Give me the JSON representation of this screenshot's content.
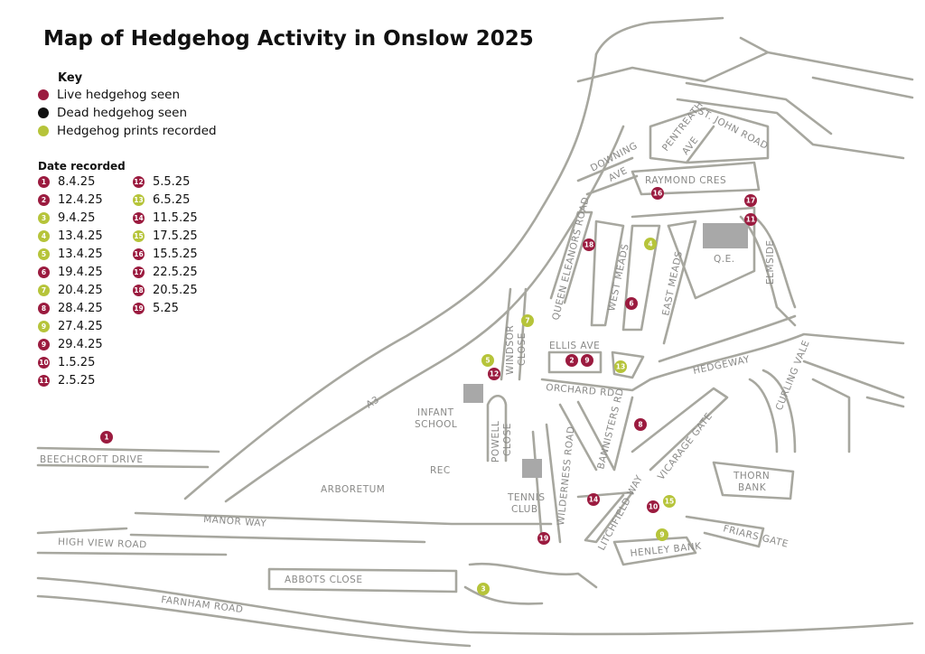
{
  "title": "Map of Hedgehog Activity in Onslow 2025",
  "colors": {
    "live": "#9b1b3f",
    "dead": "#111111",
    "prints": "#b6c43a",
    "road": "#a7a79f",
    "label": "#8a8a88",
    "building": "#a8a8a8"
  },
  "key": {
    "heading": "Key",
    "items": [
      {
        "label": "Live hedgehog seen",
        "type": "live"
      },
      {
        "label": "Dead hedgehog seen",
        "type": "dead"
      },
      {
        "label": "Hedgehog prints recorded",
        "type": "prints"
      }
    ]
  },
  "dates": {
    "heading": "Date recorded",
    "items": [
      {
        "n": "1",
        "date": "8.4.25",
        "type": "live"
      },
      {
        "n": "2",
        "date": "12.4.25",
        "type": "live"
      },
      {
        "n": "3",
        "date": "9.4.25",
        "type": "prints"
      },
      {
        "n": "4",
        "date": "13.4.25",
        "type": "prints"
      },
      {
        "n": "5",
        "date": "13.4.25",
        "type": "prints"
      },
      {
        "n": "6",
        "date": "19.4.25",
        "type": "live"
      },
      {
        "n": "7",
        "date": "20.4.25",
        "type": "prints"
      },
      {
        "n": "8",
        "date": "28.4.25",
        "type": "live"
      },
      {
        "n": "9",
        "date": "27.4.25",
        "type": "prints"
      },
      {
        "n": "9",
        "date": "29.4.25",
        "type": "live"
      },
      {
        "n": "10",
        "date": "1.5.25",
        "type": "live"
      },
      {
        "n": "11",
        "date": "2.5.25",
        "type": "live"
      },
      {
        "n": "12",
        "date": "5.5.25",
        "type": "live"
      },
      {
        "n": "13",
        "date": "6.5.25",
        "type": "prints"
      },
      {
        "n": "14",
        "date": "11.5.25",
        "type": "live"
      },
      {
        "n": "15",
        "date": "17.5.25",
        "type": "prints"
      },
      {
        "n": "16",
        "date": "15.5.25",
        "type": "live"
      },
      {
        "n": "17",
        "date": "22.5.25",
        "type": "live"
      },
      {
        "n": "18",
        "date": "20.5.25",
        "type": "live"
      },
      {
        "n": "19",
        "date": "5.25",
        "type": "live"
      }
    ]
  },
  "road_labels": {
    "beechcroft": "BEECHCROFT DRIVE",
    "a3": "A3",
    "arboretum": "ARBORETUM",
    "manor_way": "MANOR WAY",
    "high_view": "HIGH VIEW ROAD",
    "abbots": "ABBOTS CLOSE",
    "farnham": "FARNHAM ROAD",
    "rec": "REC",
    "infant": "INFANT",
    "school": "SCHOOL",
    "powell": "POWELL",
    "close_powell": "CLOSE",
    "tennis": "TENNIS",
    "club": "CLUB",
    "wilderness": "WILDERNESS ROAD",
    "windsor": "WINDSOR",
    "close_windsor": "CLOSE",
    "queen_eleanors": "QUEEN ELEANORS ROAD",
    "west_meads": "WEST MEADS",
    "east_meads": "EAST MEADS",
    "ellis": "ELLIS AVE",
    "orchard": "ORCHARD RD",
    "bannisters": "BANNISTERS RD",
    "hedgeway": "HEDGEWAY",
    "vicarage": "VICARAGE GATE",
    "litchfield": "LITCHFIELD WAY",
    "henley": "HENLEY BANK",
    "friars": "FRIARS GATE",
    "thorn": "THORN",
    "bank": "BANK",
    "curling": "CURLING VALE",
    "elmside": "ELMSIDE",
    "qe": "Q.E.",
    "raymond": "RAYMOND CRES",
    "downing": "DOWNING",
    "downing_ave": "AVE",
    "pentreath": "PENTREATH",
    "pentreath_ave": "AVE",
    "st_john": "ST. JOHN ROAD"
  },
  "markers": [
    {
      "n": "1",
      "type": "live"
    },
    {
      "n": "2",
      "type": "live"
    },
    {
      "n": "9",
      "type": "live"
    },
    {
      "n": "3",
      "type": "prints"
    },
    {
      "n": "4",
      "type": "prints"
    },
    {
      "n": "5",
      "type": "prints"
    },
    {
      "n": "6",
      "type": "live"
    },
    {
      "n": "7",
      "type": "prints"
    },
    {
      "n": "8",
      "type": "live"
    },
    {
      "n": "9",
      "type": "prints"
    },
    {
      "n": "10",
      "type": "live"
    },
    {
      "n": "11",
      "type": "live"
    },
    {
      "n": "12",
      "type": "live"
    },
    {
      "n": "13",
      "type": "prints"
    },
    {
      "n": "14",
      "type": "live"
    },
    {
      "n": "15",
      "type": "prints"
    },
    {
      "n": "16",
      "type": "live"
    },
    {
      "n": "17",
      "type": "live"
    },
    {
      "n": "18",
      "type": "live"
    },
    {
      "n": "19",
      "type": "live"
    }
  ]
}
